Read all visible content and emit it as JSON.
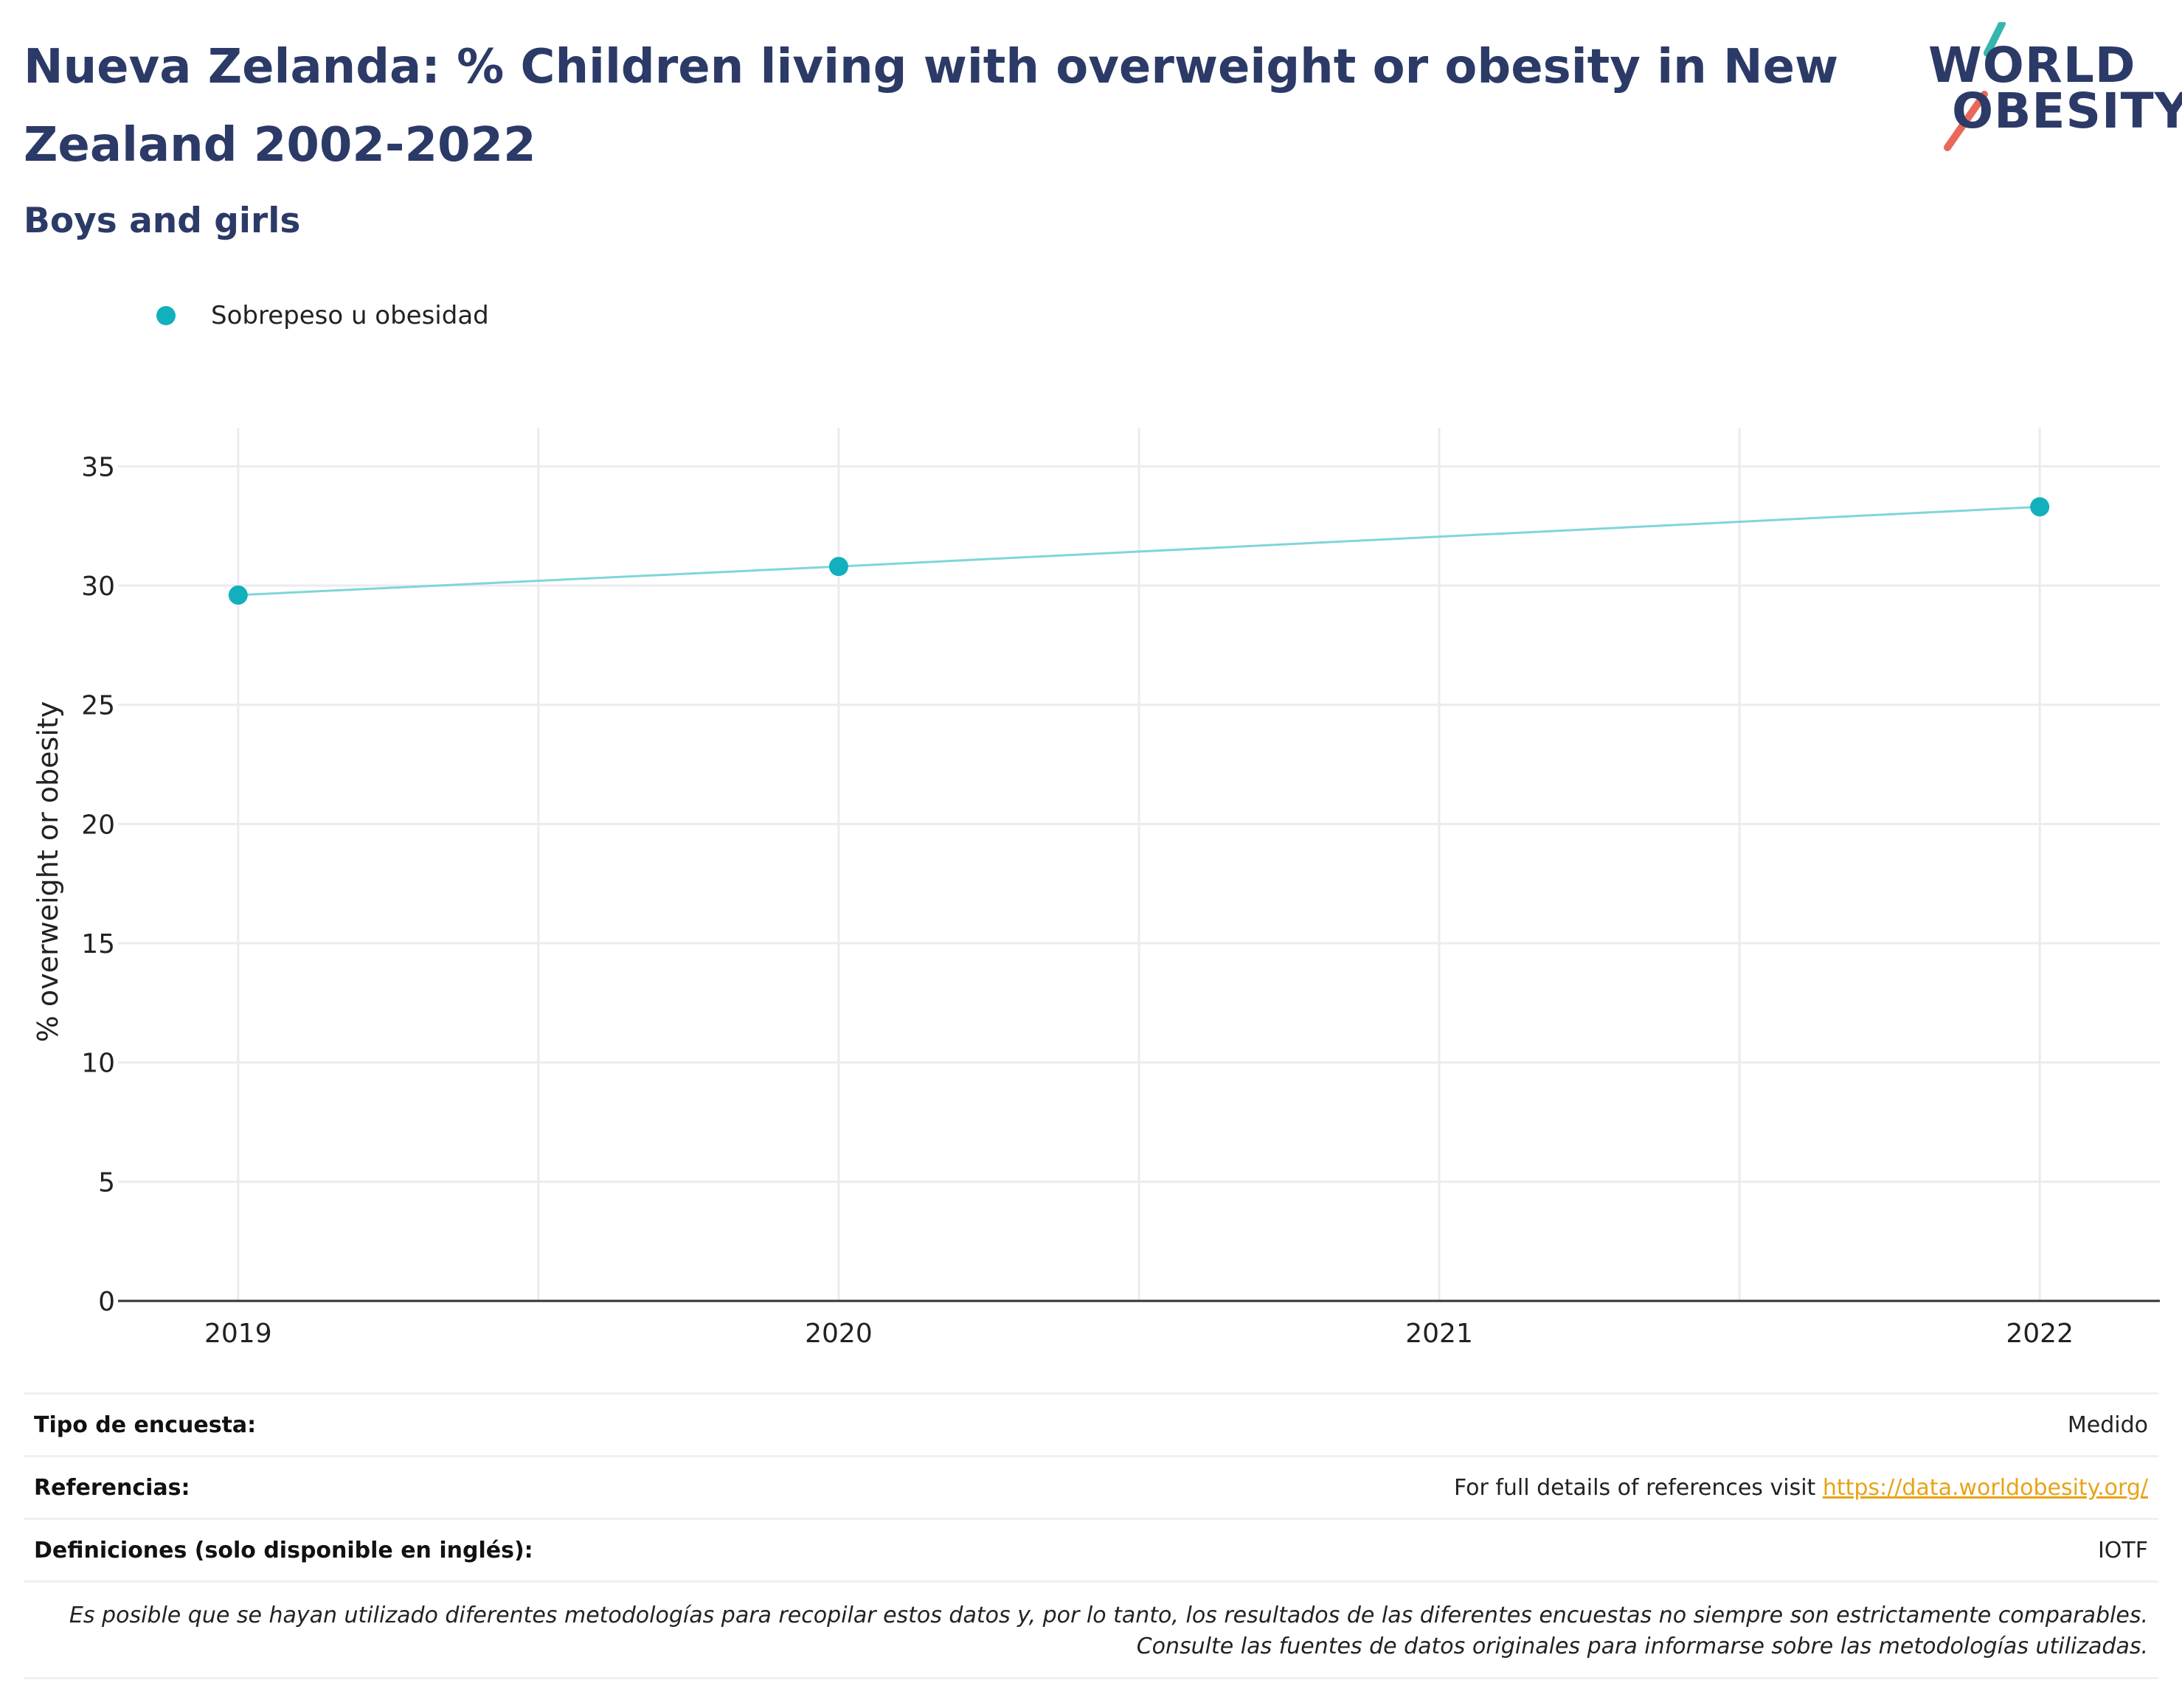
{
  "header": {
    "title": "Nueva Zelanda: % Children living with overweight or obesity in New Zealand 2002-2022",
    "subtitle": "Boys and girls"
  },
  "logo": {
    "line1": "WORLD",
    "line2": "OBESITY",
    "slash_colors": [
      "#36b5ad",
      "#e8685a"
    ]
  },
  "legend": {
    "items": [
      {
        "label": "Sobrepeso u obesidad",
        "color": "#12b0bd"
      }
    ]
  },
  "chart_data": {
    "type": "line",
    "x": [
      2019,
      2020,
      2022
    ],
    "series": [
      {
        "name": "Sobrepeso u obesidad",
        "values": [
          29.6,
          30.8,
          33.3
        ]
      }
    ],
    "xlabel": "",
    "ylabel": "% overweight or obesity",
    "xlim": [
      2018.8,
      2022.2
    ],
    "ylim": [
      0,
      36
    ],
    "x_ticks": [
      2019,
      2020,
      2021,
      2022
    ],
    "y_ticks": [
      0,
      5,
      10,
      15,
      20,
      25,
      30,
      35
    ],
    "grid": true,
    "legend_placement": "top-left",
    "colors": {
      "marker": "#12b0bd",
      "line": "#7fd6d8",
      "grid": "#ebebf0",
      "axis": "#333333"
    }
  },
  "info": {
    "rows": [
      {
        "key": "Tipo de encuesta:",
        "value": "Medido"
      },
      {
        "key": "Referencias:",
        "value_prefix": "For full details of references visit ",
        "link": "https://data.worldobesity.org/"
      },
      {
        "key": "Definiciones (solo disponible en inglés):",
        "value": "IOTF"
      }
    ],
    "note": "Es posible que se hayan utilizado diferentes metodologías para recopilar estos datos y, por lo tanto, los resultados de las diferentes encuestas no siempre son estrictamente comparables. Consulte las fuentes de datos originales para informarse sobre las metodologías utilizadas.",
    "link_color": "#e8a317"
  }
}
